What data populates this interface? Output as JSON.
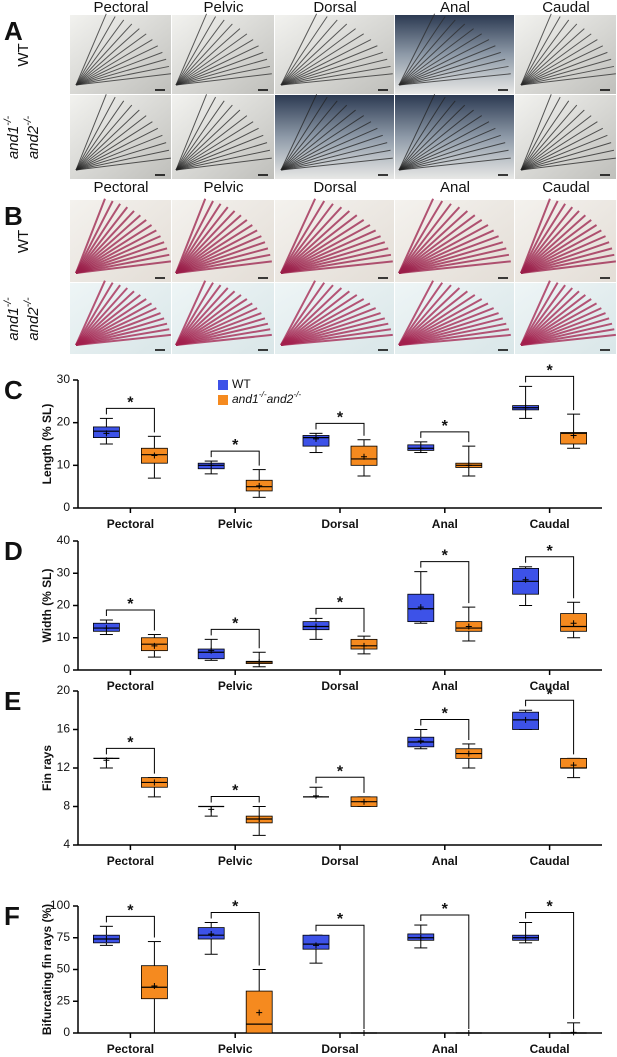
{
  "panels": [
    {
      "letter": "A",
      "columns": [
        "Pectoral",
        "Pelvic",
        "Dorsal",
        "Anal",
        "Caudal"
      ],
      "rows": [
        [
          "WT"
        ],
        [
          "and1-/-",
          "and2-/-"
        ]
      ]
    },
    {
      "letter": "B",
      "columns": [
        "Pectoral",
        "Pelvic",
        "Dorsal",
        "Anal",
        "Caudal"
      ],
      "rows": [
        [
          "WT"
        ],
        [
          "and1-/-",
          "and2-/-"
        ]
      ]
    }
  ],
  "chart_data": [
    {
      "type": "box",
      "panel": "C",
      "ylabel": "Length (% SL)",
      "ylim": [
        0,
        30
      ],
      "yticks": [
        0,
        10,
        20,
        30
      ],
      "categories": [
        "Pectoral",
        "Pelvic",
        "Dorsal",
        "Anal",
        "Caudal"
      ],
      "significance": [
        "*",
        "*",
        "*",
        "*",
        "*"
      ],
      "series": [
        {
          "name": "WT",
          "color": "#3d52e8",
          "min": [
            15,
            8,
            13,
            13,
            21
          ],
          "q1": [
            16.5,
            9.2,
            14.5,
            13.5,
            23
          ],
          "median": [
            18,
            10,
            16.5,
            14,
            23.5
          ],
          "q3": [
            19,
            10.5,
            17,
            14.8,
            24
          ],
          "max": [
            21,
            11,
            17.5,
            15.5,
            28.5
          ],
          "mean": [
            17.5,
            10,
            16.2,
            14,
            23.5
          ]
        },
        {
          "name": "and1-/-and2-/-",
          "color": "#f58a1f",
          "min": [
            7,
            2.5,
            7.5,
            7.5,
            14
          ],
          "q1": [
            10.5,
            4,
            10,
            9.5,
            15
          ],
          "median": [
            12.5,
            5,
            11.5,
            10,
            17.5
          ],
          "q3": [
            14,
            6.5,
            14.5,
            10.5,
            17.7
          ],
          "max": [
            16.8,
            9,
            16,
            14.5,
            22
          ],
          "mean": [
            12.3,
            5.2,
            12,
            10,
            17
          ]
        }
      ]
    },
    {
      "type": "box",
      "panel": "D",
      "ylabel": "Width (% SL)",
      "ylim": [
        0,
        40
      ],
      "yticks": [
        0,
        10,
        20,
        30,
        40
      ],
      "categories": [
        "Pectoral",
        "Pelvic",
        "Dorsal",
        "Anal",
        "Caudal"
      ],
      "significance": [
        "*",
        "*",
        "*",
        "*",
        "*"
      ],
      "series": [
        {
          "color": "#3d52e8",
          "min": [
            11,
            3,
            9.5,
            14.5,
            20
          ],
          "q1": [
            12,
            3.5,
            12.5,
            15,
            23.5
          ],
          "median": [
            13,
            5.5,
            13.5,
            19,
            27.5
          ],
          "q3": [
            14.5,
            6.5,
            15,
            23.5,
            31.5
          ],
          "max": [
            15.5,
            9.5,
            16,
            30.5,
            32
          ],
          "mean": [
            13,
            6,
            13.5,
            19.5,
            28
          ]
        },
        {
          "color": "#f58a1f",
          "min": [
            4,
            1,
            5,
            9,
            10
          ],
          "q1": [
            6,
            2,
            6.5,
            12,
            12
          ],
          "median": [
            8,
            2.5,
            7.5,
            13,
            13.5
          ],
          "q3": [
            10,
            2.7,
            9.5,
            15,
            17.5
          ],
          "max": [
            11,
            5.5,
            10.5,
            19.5,
            21
          ],
          "mean": [
            7.5,
            2.5,
            7.5,
            13.5,
            14.5
          ]
        }
      ]
    },
    {
      "type": "box",
      "panel": "E",
      "ylabel": "Fin rays",
      "ylim": [
        4,
        20
      ],
      "yticks": [
        4,
        8,
        12,
        16,
        20
      ],
      "categories": [
        "Pectoral",
        "Pelvic",
        "Dorsal",
        "Anal",
        "Caudal"
      ],
      "significance": [
        "*",
        "*",
        "*",
        "*",
        "*"
      ],
      "series": [
        {
          "color": "#3d52e8",
          "min": [
            12,
            7,
            9,
            14,
            16
          ],
          "q1": [
            13,
            8,
            9,
            14.2,
            16
          ],
          "median": [
            13,
            8,
            9,
            14.7,
            17
          ],
          "q3": [
            13,
            8,
            9,
            15.2,
            17.8
          ],
          "max": [
            13,
            8,
            10,
            16,
            18
          ],
          "mean": [
            12.8,
            7.7,
            9.1,
            14.8,
            17
          ]
        },
        {
          "color": "#f58a1f",
          "min": [
            9,
            5,
            8,
            12,
            11
          ],
          "q1": [
            10,
            6.3,
            8,
            13,
            12
          ],
          "median": [
            10.5,
            6.7,
            8.5,
            13.5,
            12
          ],
          "q3": [
            11,
            7,
            9,
            14,
            13
          ],
          "max": [
            11,
            8,
            9,
            14.5,
            13
          ],
          "mean": [
            10.5,
            6.7,
            8.5,
            13.5,
            12.3
          ]
        }
      ]
    },
    {
      "type": "box",
      "panel": "F",
      "ylabel": "Bifurcating fin rays (%)",
      "ylim": [
        0,
        100
      ],
      "yticks": [
        0,
        25,
        50,
        75,
        100
      ],
      "categories": [
        "Pectoral",
        "Pelvic",
        "Dorsal",
        "Anal",
        "Caudal"
      ],
      "significance": [
        "*",
        "*",
        "*",
        "*",
        "*"
      ],
      "series": [
        {
          "color": "#3d52e8",
          "min": [
            69,
            62,
            55,
            67,
            71
          ],
          "q1": [
            71,
            74,
            66,
            73,
            73
          ],
          "median": [
            74,
            77,
            70,
            75,
            75
          ],
          "q3": [
            77,
            83,
            77,
            78,
            77
          ],
          "max": [
            84,
            87,
            77,
            85,
            87
          ],
          "mean": [
            74,
            78,
            69,
            75,
            75
          ]
        },
        {
          "color": "#f58a1f",
          "min": [
            0,
            0,
            0,
            0,
            0
          ],
          "q1": [
            27,
            0,
            0,
            0,
            0
          ],
          "median": [
            36,
            7,
            0,
            0,
            0
          ],
          "q3": [
            53,
            33,
            0,
            0,
            0
          ],
          "max": [
            72,
            50,
            0,
            0,
            8
          ],
          "mean": [
            37,
            16,
            0,
            0,
            0.5
          ]
        }
      ]
    }
  ]
}
